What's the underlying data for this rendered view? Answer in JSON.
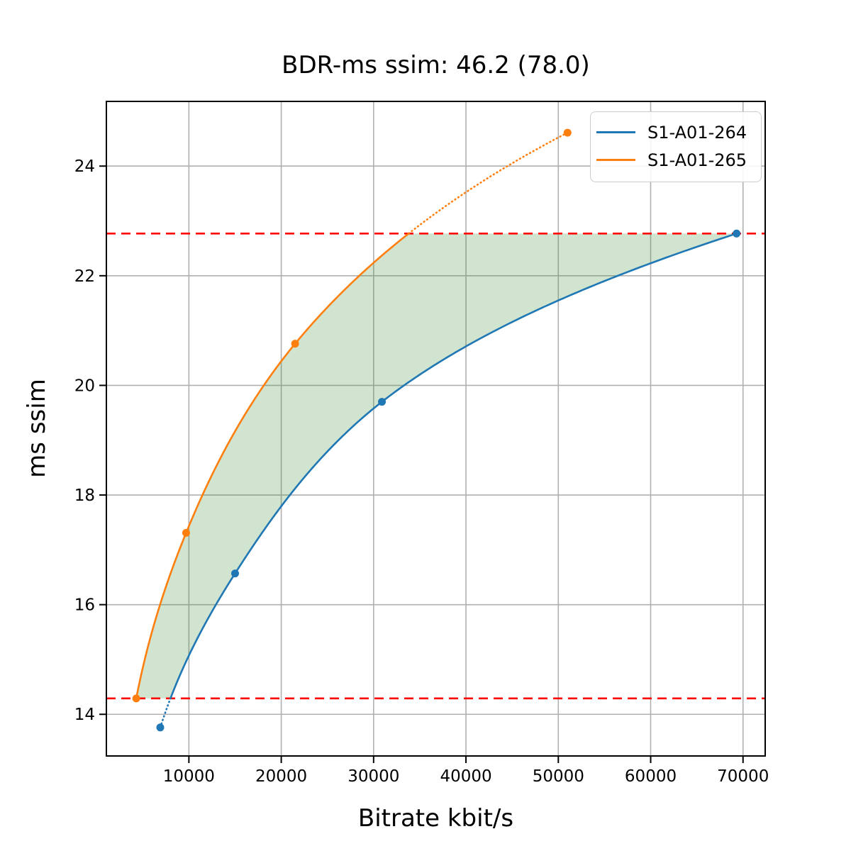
{
  "figure": {
    "title": "BDR-ms ssim: 46.2 (78.0)",
    "bdr_value": "46.2",
    "bdr_value_alt": "78.0"
  },
  "chart_data": {
    "type": "line",
    "title": "BDR-ms ssim: 46.2 (78.0)",
    "xlabel": "Bitrate kbit/s",
    "ylabel": "ms ssim",
    "xlim": [
      1065,
      72400
    ],
    "ylim": [
      13.24,
      25.18
    ],
    "xticks": {
      "values": [
        10000,
        20000,
        30000,
        40000,
        50000,
        60000,
        70000
      ],
      "labels": [
        "10000",
        "20000",
        "30000",
        "40000",
        "50000",
        "60000",
        "70000"
      ]
    },
    "yticks": {
      "values": [
        14,
        16,
        18,
        20,
        22,
        24
      ],
      "labels": [
        "14",
        "16",
        "18",
        "20",
        "22",
        "24"
      ]
    },
    "grid": true,
    "grid_color": "#b0b0b0",
    "series": [
      {
        "name": "S1-A01-264",
        "color": "#1f77b4",
        "x": [
          6900,
          15000,
          30900,
          69300
        ],
        "y": [
          13.76,
          16.57,
          19.7,
          22.77
        ]
      },
      {
        "name": "S1-A01-265",
        "color": "#ff7f0e",
        "x": [
          4300,
          9700,
          21500,
          51000
        ],
        "y": [
          14.29,
          17.31,
          20.76,
          24.61
        ]
      }
    ],
    "overlap_lines": {
      "color": "#ff0000",
      "style": "dashed",
      "y_low": 14.29,
      "y_high": 22.77
    },
    "fill_between": {
      "color": "#3a8f3a",
      "alpha": 0.24,
      "between": [
        "S1-A01-265",
        "S1-A01-264"
      ],
      "y_range": [
        14.29,
        22.77
      ]
    },
    "legend": {
      "position": "upper right",
      "entries": [
        "S1-A01-264",
        "S1-A01-265"
      ]
    },
    "interpolation": "pchip on (ln x, y); solid inside overlap y-range, dotted outside"
  }
}
